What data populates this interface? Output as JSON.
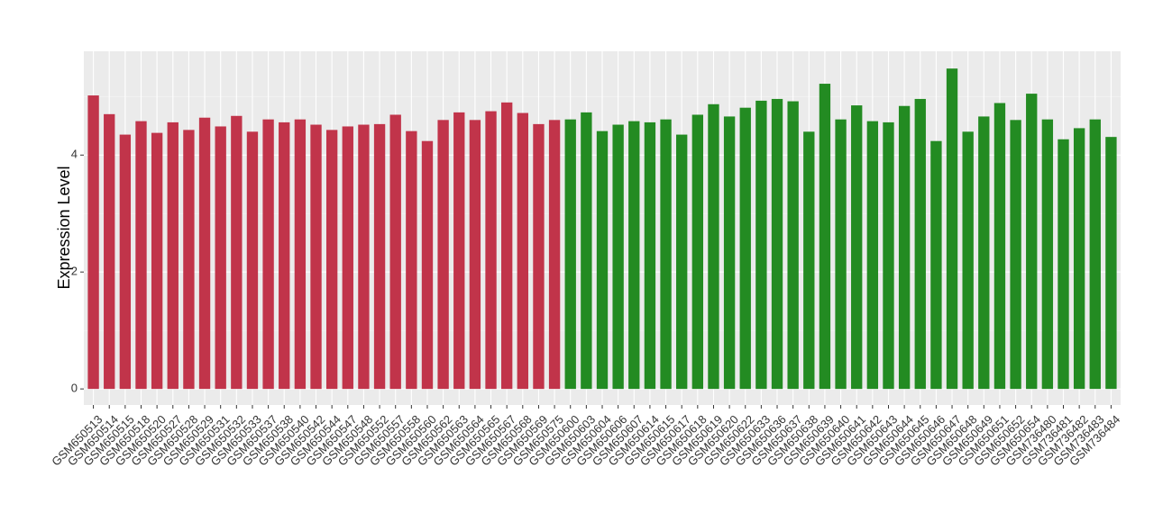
{
  "chart_data": {
    "type": "bar",
    "y_label": "Expression Level",
    "categories": [
      "GSM650513",
      "GSM650514",
      "GSM650515",
      "GSM650518",
      "GSM650520",
      "GSM650527",
      "GSM650528",
      "GSM650529",
      "GSM650531",
      "GSM650532",
      "GSM650533",
      "GSM650537",
      "GSM650538",
      "GSM650540",
      "GSM650542",
      "GSM650544",
      "GSM650547",
      "GSM650548",
      "GSM650552",
      "GSM650557",
      "GSM650558",
      "GSM650560",
      "GSM650562",
      "GSM650563",
      "GSM650564",
      "GSM650565",
      "GSM650567",
      "GSM650568",
      "GSM650569",
      "GSM650575",
      "GSM650600",
      "GSM650603",
      "GSM650604",
      "GSM650606",
      "GSM650607",
      "GSM650614",
      "GSM650615",
      "GSM650617",
      "GSM650618",
      "GSM650619",
      "GSM650620",
      "GSM650622",
      "GSM650633",
      "GSM650636",
      "GSM650637",
      "GSM650638",
      "GSM650639",
      "GSM650640",
      "GSM650641",
      "GSM650642",
      "GSM650643",
      "GSM650644",
      "GSM650645",
      "GSM650646",
      "GSM650647",
      "GSM650648",
      "GSM650649",
      "GSM650651",
      "GSM650652",
      "GSM650654",
      "GSM736480",
      "GSM736481",
      "GSM736482",
      "GSM736483",
      "GSM736484"
    ],
    "values": [
      5.02,
      4.7,
      4.35,
      4.58,
      4.38,
      4.56,
      4.43,
      4.64,
      4.49,
      4.67,
      4.4,
      4.61,
      4.56,
      4.61,
      4.52,
      4.43,
      4.49,
      4.52,
      4.53,
      4.69,
      4.41,
      4.24,
      4.6,
      4.73,
      4.6,
      4.75,
      4.9,
      4.72,
      4.53,
      4.6,
      4.61,
      4.73,
      4.41,
      4.52,
      4.58,
      4.56,
      4.61,
      4.35,
      4.69,
      4.87,
      4.66,
      4.81,
      4.93,
      4.96,
      4.92,
      4.4,
      5.22,
      4.61,
      4.85,
      4.58,
      4.56,
      4.84,
      4.96,
      4.24,
      5.48,
      4.4,
      4.66,
      4.89,
      4.6,
      5.05,
      4.61,
      4.27,
      4.46,
      4.61,
      4.31
    ],
    "colors": [
      "#c1344a",
      "#c1344a",
      "#c1344a",
      "#c1344a",
      "#c1344a",
      "#c1344a",
      "#c1344a",
      "#c1344a",
      "#c1344a",
      "#c1344a",
      "#c1344a",
      "#c1344a",
      "#c1344a",
      "#c1344a",
      "#c1344a",
      "#c1344a",
      "#c1344a",
      "#c1344a",
      "#c1344a",
      "#c1344a",
      "#c1344a",
      "#c1344a",
      "#c1344a",
      "#c1344a",
      "#c1344a",
      "#c1344a",
      "#c1344a",
      "#c1344a",
      "#c1344a",
      "#c1344a",
      "#238b22",
      "#238b22",
      "#238b22",
      "#238b22",
      "#238b22",
      "#238b22",
      "#238b22",
      "#238b22",
      "#238b22",
      "#238b22",
      "#238b22",
      "#238b22",
      "#238b22",
      "#238b22",
      "#238b22",
      "#238b22",
      "#238b22",
      "#238b22",
      "#238b22",
      "#238b22",
      "#238b22",
      "#238b22",
      "#238b22",
      "#238b22",
      "#238b22",
      "#238b22",
      "#238b22",
      "#238b22",
      "#238b22",
      "#238b22",
      "#238b22",
      "#238b22",
      "#238b22",
      "#238b22",
      "#238b22"
    ],
    "ylim": [
      -0.275,
      5.775
    ],
    "yticks": [
      0,
      2,
      4
    ],
    "grid": true
  }
}
